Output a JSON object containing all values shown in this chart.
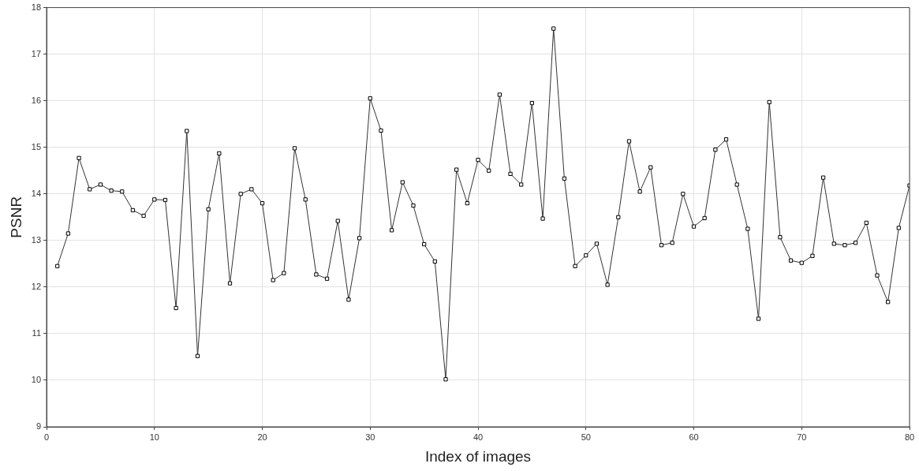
{
  "chart_data": {
    "type": "line",
    "xlabel": "Index of images",
    "ylabel": "PSNR",
    "x": [
      1,
      2,
      3,
      4,
      5,
      6,
      7,
      8,
      9,
      10,
      11,
      12,
      13,
      14,
      15,
      16,
      17,
      18,
      19,
      20,
      21,
      22,
      23,
      24,
      25,
      26,
      27,
      28,
      29,
      30,
      31,
      32,
      33,
      34,
      35,
      36,
      37,
      38,
      39,
      40,
      41,
      42,
      43,
      44,
      45,
      46,
      47,
      48,
      49,
      50,
      51,
      52,
      53,
      54,
      55,
      56,
      57,
      58,
      59,
      60,
      61,
      62,
      63,
      64,
      65,
      66,
      67,
      68,
      69,
      70,
      71,
      72,
      73,
      74,
      75,
      76,
      77,
      78,
      79,
      80
    ],
    "series": [
      {
        "color": "#333333",
        "values": [
          12.45,
          13.15,
          14.77,
          14.1,
          14.2,
          14.07,
          14.05,
          13.65,
          13.53,
          13.88,
          13.87,
          11.55,
          15.35,
          10.52,
          13.67,
          14.87,
          12.08,
          14.0,
          14.1,
          13.8,
          12.15,
          12.3,
          14.98,
          13.88,
          12.27,
          12.18,
          13.42,
          11.73,
          13.05,
          16.05,
          15.36,
          13.22,
          14.25,
          13.75,
          12.92,
          12.55,
          10.02,
          14.52,
          13.8,
          14.73,
          14.5,
          16.13,
          14.43,
          14.2,
          15.95,
          13.47,
          17.55,
          14.33,
          12.45,
          12.68,
          12.93,
          12.05,
          13.5,
          15.13,
          14.05,
          14.57,
          12.9,
          12.95,
          14.0,
          13.3,
          13.48,
          14.95,
          15.17,
          14.2,
          13.25,
          11.32,
          15.97,
          13.07,
          12.57,
          12.52,
          12.67,
          14.35,
          12.93,
          12.9,
          12.95,
          13.38,
          12.25,
          11.68,
          13.27,
          14.18
        ]
      }
    ],
    "xlim": [
      0,
      80
    ],
    "xticks": [
      0,
      10,
      20,
      30,
      40,
      50,
      60,
      70,
      80
    ],
    "ylim": [
      9,
      18
    ],
    "yticks": [
      9,
      10,
      11,
      12,
      13,
      14,
      15,
      16,
      17,
      18
    ],
    "grid": true,
    "marker": "square",
    "line_style": "solid",
    "legend": false
  }
}
